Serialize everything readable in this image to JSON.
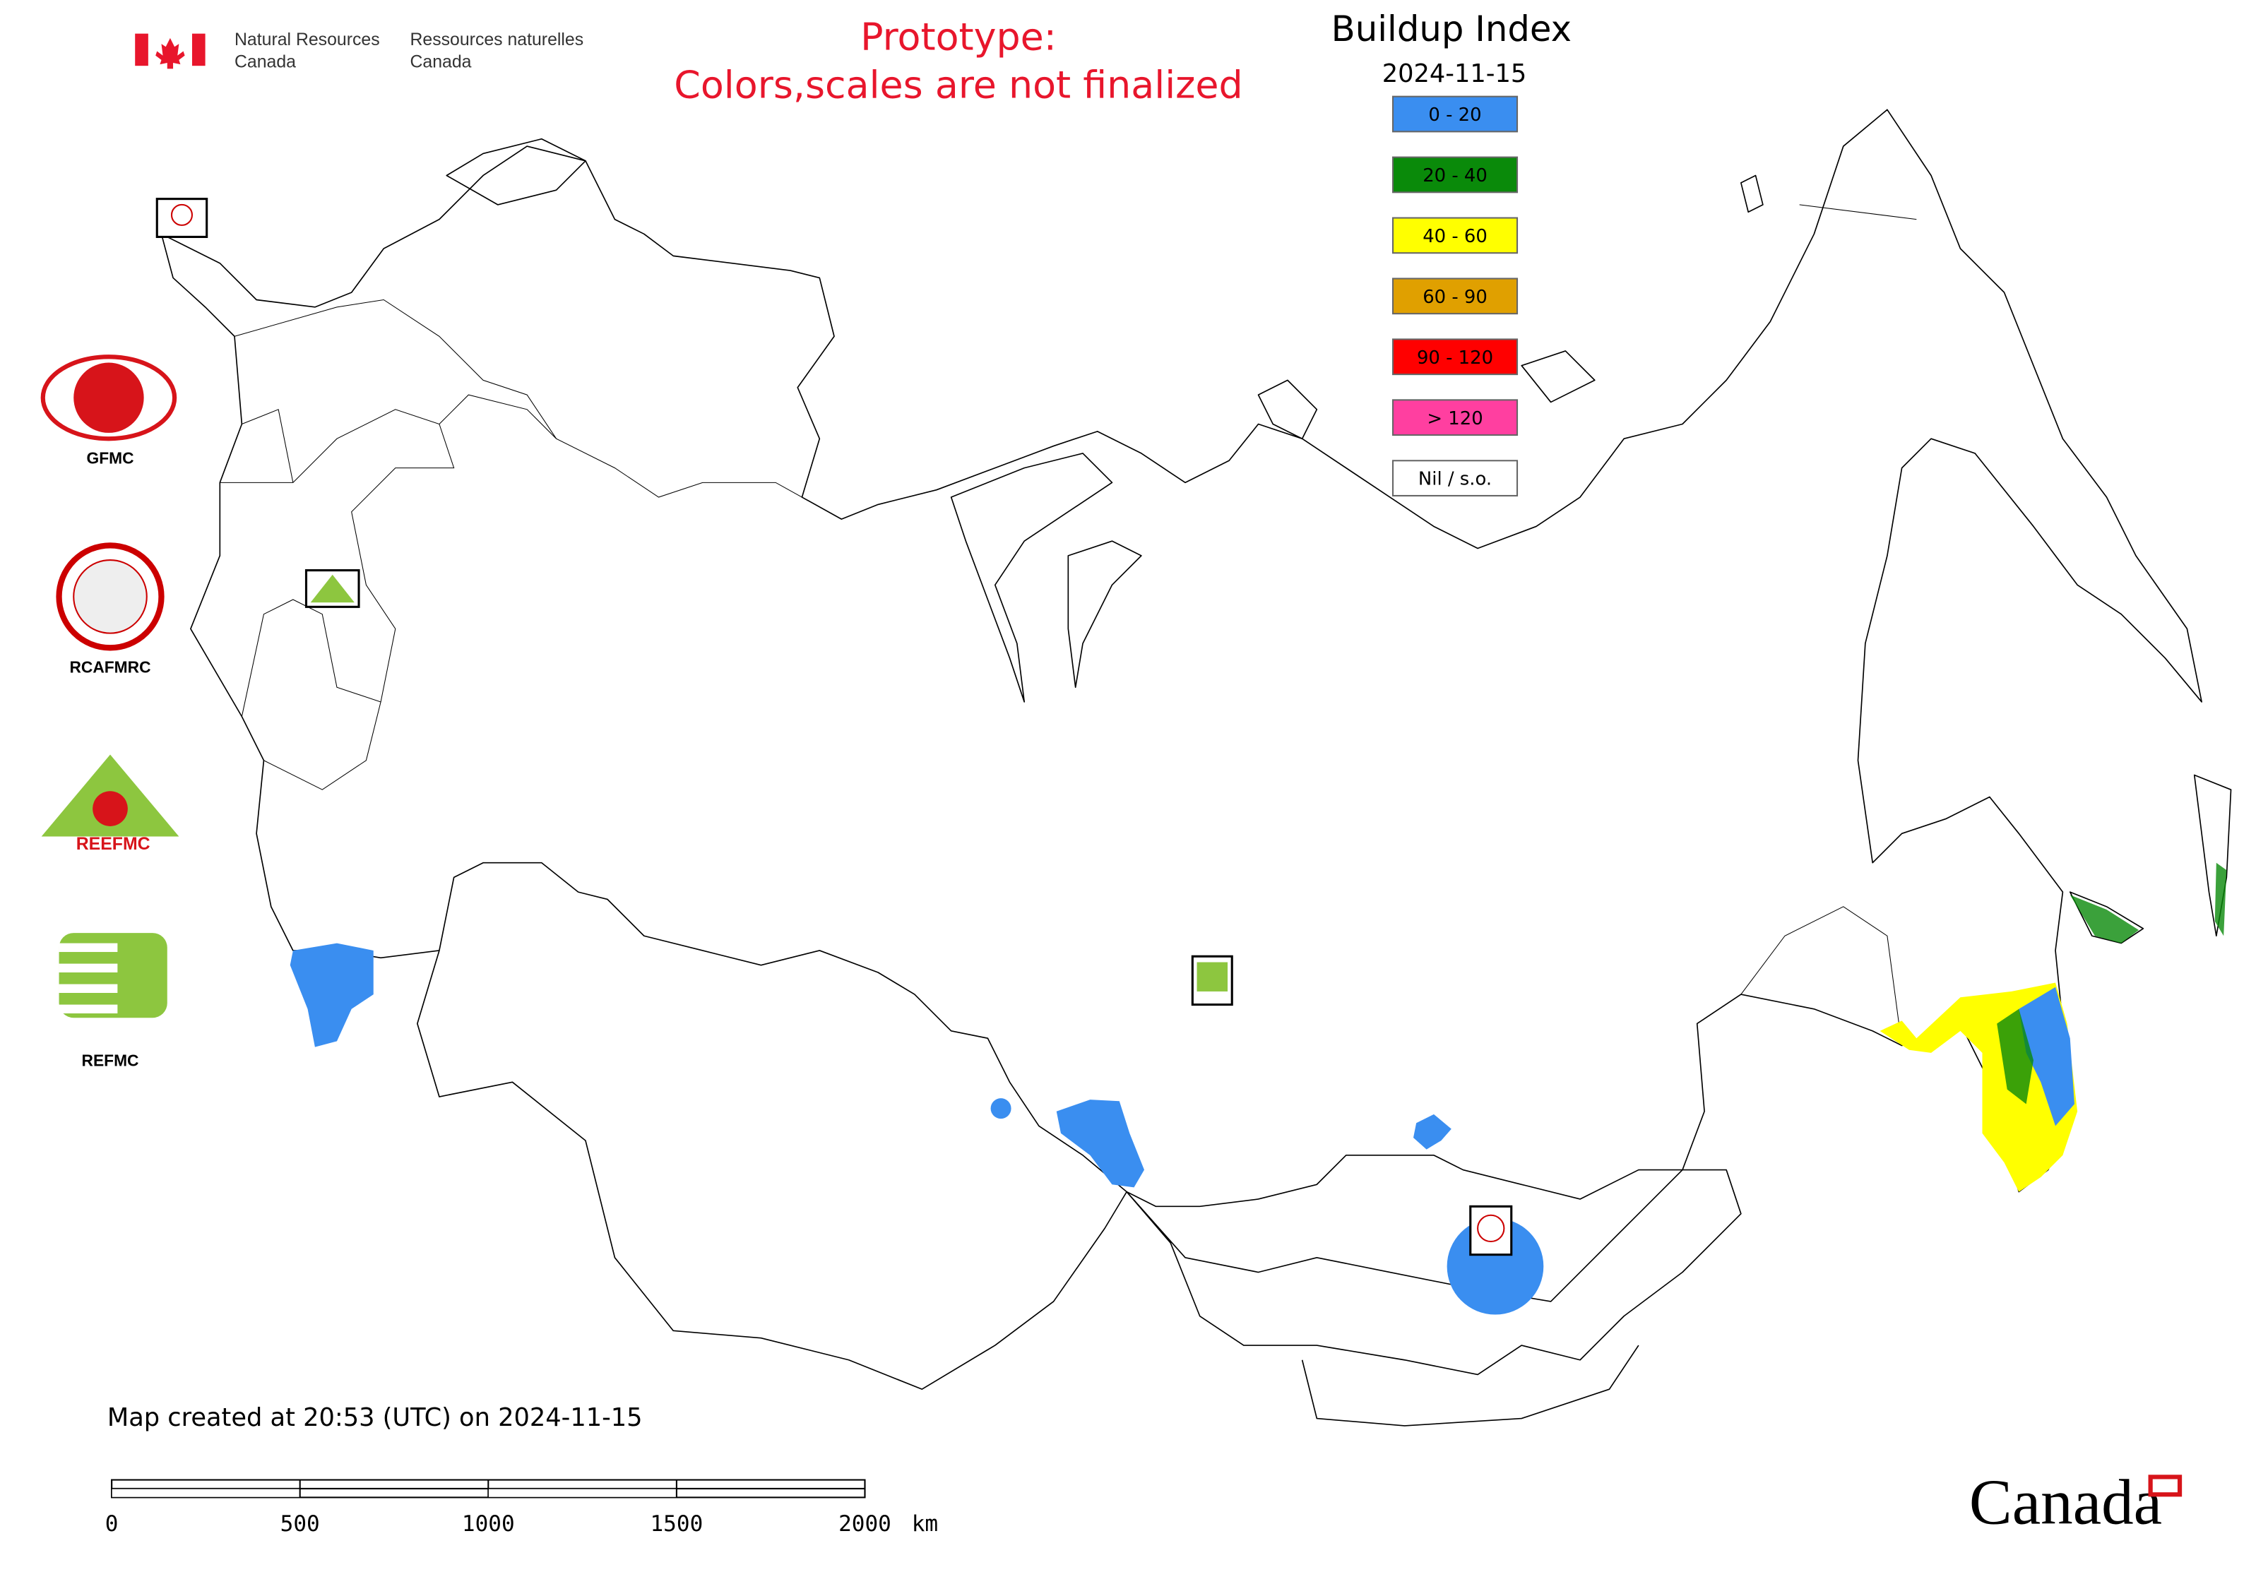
{
  "header": {
    "dept_en": [
      "Natural Resources",
      "Canada"
    ],
    "dept_fr": [
      "Ressources naturelles",
      "Canada"
    ]
  },
  "notice": [
    "Prototype:",
    "Colors,scales are not finalized"
  ],
  "legend": {
    "title": "Buildup Index",
    "date": "2024-11-15",
    "items": [
      {
        "label": "0 - 20",
        "color": "#3a8ef0"
      },
      {
        "label": "20 - 40",
        "color": "#0a8a0a"
      },
      {
        "label": "40 - 60",
        "color": "#ffff00"
      },
      {
        "label": "60 - 90",
        "color": "#e0a000"
      },
      {
        "label": "90 - 120",
        "color": "#ff0000"
      },
      {
        "label": "> 120",
        "color": "#ff3fa0"
      },
      {
        "label": "Nil / s.o.",
        "color": "#ffffff"
      }
    ]
  },
  "logos": [
    "GFMC",
    "RCAFMRC",
    "REEFMC",
    "REFMC"
  ],
  "footer": {
    "created": "Map created at 20:53 (UTC) on 2024-11-15",
    "scale": {
      "ticks": [
        "0",
        "500",
        "1000",
        "1500",
        "2000"
      ],
      "unit": "km"
    },
    "wordmark": "Canada"
  }
}
